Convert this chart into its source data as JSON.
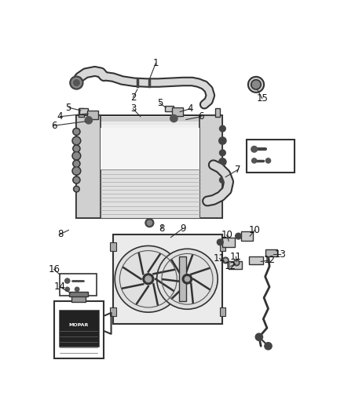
{
  "bg_color": "#ffffff",
  "lc": "#333333",
  "lc2": "#555555",
  "fig_w": 4.38,
  "fig_h": 5.33,
  "dpi": 100
}
